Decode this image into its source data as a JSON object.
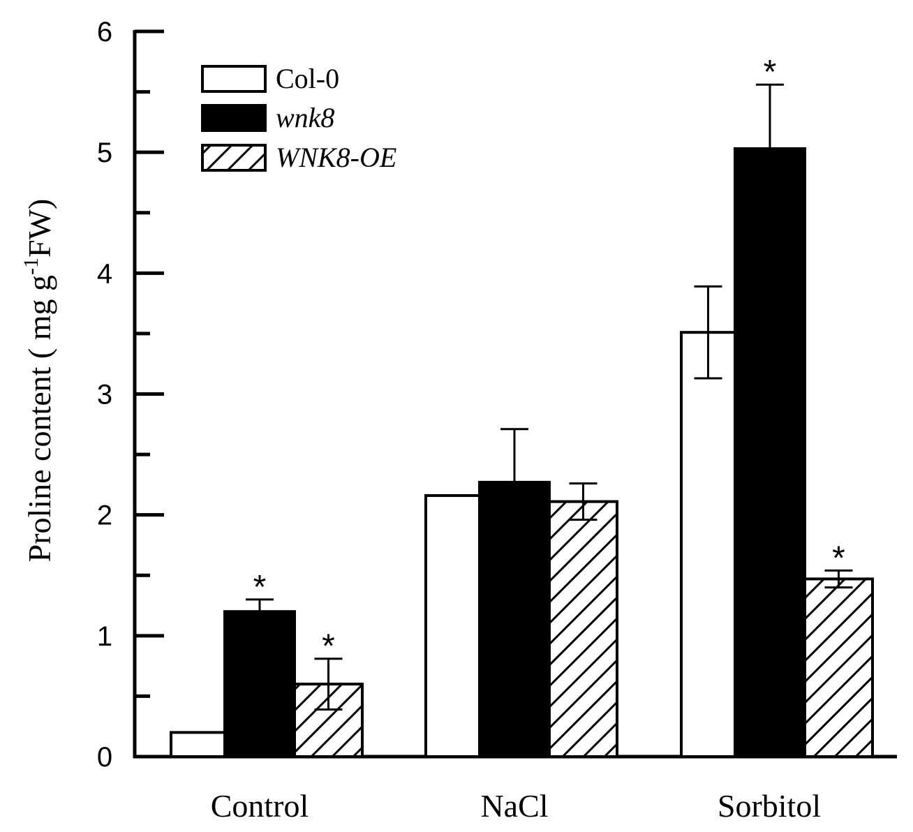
{
  "chart_data": {
    "type": "bar",
    "title": "",
    "xlabel": "",
    "ylabel": "Proline content ( mg g-1FW)",
    "ylabel_parts": {
      "main": "Proline content ( mg g",
      "sup": "-1",
      "tail": "FW)"
    },
    "ylim": [
      0,
      6
    ],
    "yticks": [
      "0",
      "1",
      "2",
      "3",
      "4",
      "5",
      "6"
    ],
    "categories": [
      "Control",
      "NaCl",
      "Sorbitol"
    ],
    "legend_position": "top-left",
    "series": [
      {
        "name": "Col-0",
        "style": "white",
        "italic": false,
        "values": [
          0.2,
          2.16,
          3.51
        ],
        "errors": [
          0,
          0,
          0.38
        ],
        "significant": [
          false,
          false,
          false
        ]
      },
      {
        "name": "wnk8",
        "style": "black",
        "italic": true,
        "values": [
          1.2,
          2.27,
          5.03
        ],
        "errors": [
          0.1,
          0.44,
          0.53
        ],
        "significant": [
          true,
          false,
          true
        ]
      },
      {
        "name": "WNK8-OE",
        "style": "hatched",
        "italic": true,
        "values": [
          0.6,
          2.11,
          1.47
        ],
        "errors": [
          0.21,
          0.15,
          0.07
        ],
        "significant": [
          true,
          false,
          true
        ]
      }
    ],
    "significance_marker": "*"
  }
}
